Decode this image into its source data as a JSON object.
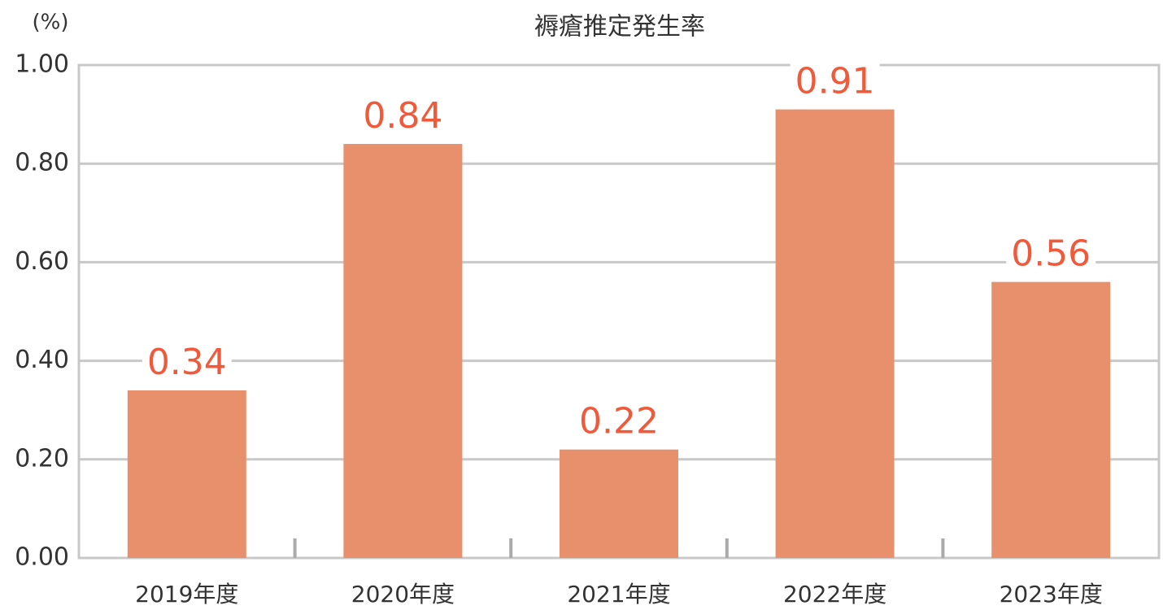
{
  "chart_data": {
    "type": "bar",
    "title": "褥瘡推定発生率",
    "y_label": "(%)",
    "categories": [
      "2019年度",
      "2020年度",
      "2021年度",
      "2022年度",
      "2023年度"
    ],
    "values": [
      0.34,
      0.84,
      0.22,
      0.91,
      0.56
    ],
    "color": "#e8906c",
    "label_color": "#f05a3a",
    "ylim": [
      0,
      1
    ],
    "yticks": [
      {
        "value": 0,
        "label": "0.00"
      },
      {
        "value": 0.2,
        "label": "0.20"
      },
      {
        "value": 0.4,
        "label": "0.40"
      },
      {
        "value": 0.6,
        "label": "0.60"
      },
      {
        "value": 0.8,
        "label": "0.80"
      },
      {
        "value": 1,
        "label": "1.00"
      }
    ],
    "grid": true
  }
}
